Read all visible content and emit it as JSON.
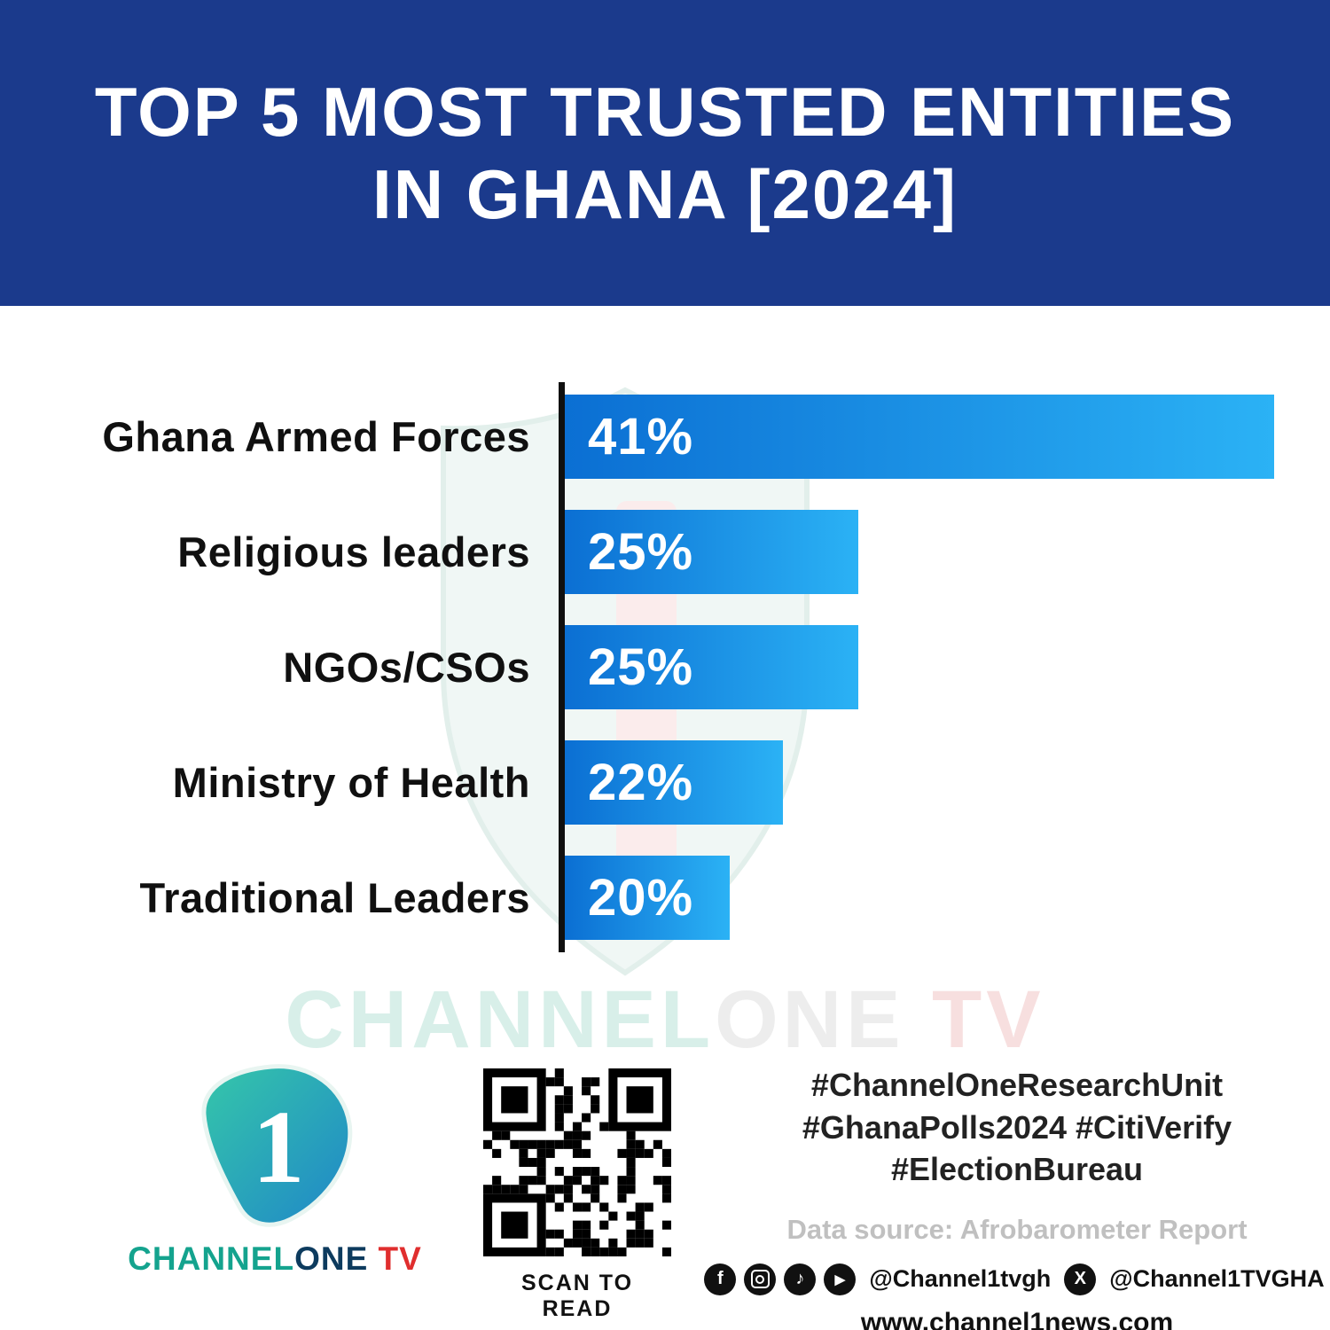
{
  "header": {
    "title_line1": "TOP 5 MOST TRUSTED ENTITIES",
    "title_line2": "IN GHANA [2024]"
  },
  "chart_data": {
    "type": "bar",
    "orientation": "horizontal",
    "title": "Top 5 Most Trusted Entities in Ghana [2024]",
    "categories": [
      "Ghana Armed Forces",
      "Religious leaders",
      "NGOs/CSOs",
      "Ministry of Health",
      "Traditional Leaders"
    ],
    "values": [
      41,
      25,
      25,
      22,
      20
    ],
    "value_labels": [
      "41%",
      "25%",
      "25%",
      "22%",
      "20%"
    ],
    "xlim": [
      0,
      41
    ],
    "grid": false,
    "legend": false,
    "bar_display_widths_pct": [
      100,
      41.4,
      41.4,
      30.7,
      23.2
    ],
    "bar_gradient": [
      "#0b6fd3",
      "#2bb2f5"
    ]
  },
  "watermark": {
    "segments": [
      {
        "text": "CHANNEL",
        "color": "#d8efe9"
      },
      {
        "text": "ONE",
        "color": "#ededed"
      },
      {
        "text": " TV",
        "color": "#f7dfdf"
      }
    ]
  },
  "footer": {
    "logo_digit": "1",
    "brand_segments": [
      {
        "text": "CHANNEL",
        "color": "#14a38e"
      },
      {
        "text": "ONE",
        "color": "#0d3b5e"
      },
      {
        "text": " TV",
        "color": "#e02e2e"
      }
    ],
    "qr_caption": "SCAN TO READ",
    "hashtags_line1": "#ChannelOneResearchUnit",
    "hashtags_line2": "#GhanaPolls2024 #CitiVerify",
    "hashtags_line3": "#ElectionBureau",
    "data_source": "Data source: Afrobarometer Report",
    "social_handle1": "@Channel1tvgh",
    "social_handle2": "@Channel1TVGHA",
    "website": "www.channel1news.com",
    "social_icons": [
      "facebook",
      "instagram",
      "tiktok",
      "youtube",
      "x"
    ]
  },
  "colors": {
    "header_bg": "#1b3a8c",
    "bar_start": "#0b6fd3",
    "bar_end": "#2bb2f5",
    "axis": "#101010",
    "hashtag_text": "#222222",
    "data_source_text": "#c0c0c0"
  }
}
